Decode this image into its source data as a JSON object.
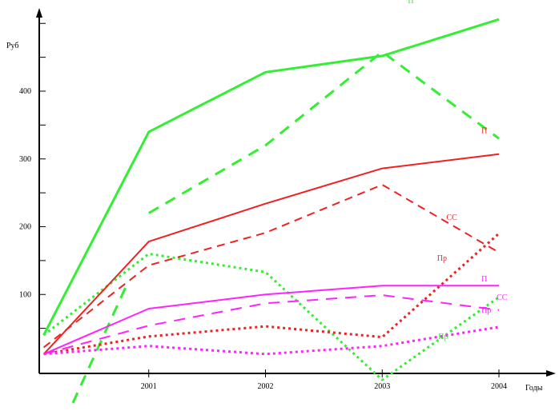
{
  "chart_data": {
    "type": "line",
    "xlabel": "Годы",
    "ylabel": "Руб",
    "x_ticks": [
      "2001",
      "2002",
      "2003",
      "2004"
    ],
    "y_ticks": [
      "100",
      "200",
      "300",
      "400"
    ],
    "series": [
      {
        "name": "",
        "color": "#33ee33",
        "style": "solid",
        "points": [
          [
            2000.1,
            40
          ],
          [
            2001,
            340
          ],
          [
            2002,
            428
          ],
          [
            2003,
            452
          ],
          [
            2004,
            506
          ]
        ]
      },
      {
        "name": "",
        "color": "#33ee33",
        "style": "dashed",
        "points": [
          [
            2001,
            220
          ],
          [
            2002,
            320
          ],
          [
            2003,
            458
          ],
          [
            2004,
            330
          ]
        ]
      },
      {
        "name": "",
        "color": "#33ee33",
        "style": "dashed",
        "points": [
          [
            2000.35,
            -60
          ],
          [
            2000.8,
            110
          ]
        ]
      },
      {
        "name": "",
        "color": "#33ee33",
        "style": "dotted",
        "points": [
          [
            2000.1,
            40
          ],
          [
            2001,
            160
          ],
          [
            2002,
            133
          ],
          [
            2003,
            -26
          ],
          [
            2004,
            96
          ]
        ]
      },
      {
        "name": "",
        "color": "#ee2222",
        "style": "solid",
        "points": [
          [
            2000.1,
            12
          ],
          [
            2001,
            178
          ],
          [
            2002,
            234
          ],
          [
            2003,
            286
          ],
          [
            2004,
            307
          ]
        ]
      },
      {
        "name": "",
        "color": "#ee2222",
        "style": "dashed",
        "points": [
          [
            2000.1,
            22
          ],
          [
            2001,
            143
          ],
          [
            2002,
            191
          ],
          [
            2003,
            262
          ],
          [
            2004,
            162
          ]
        ]
      },
      {
        "name": "",
        "color": "#ee2222",
        "style": "dotted",
        "points": [
          [
            2000.1,
            12
          ],
          [
            2001,
            38
          ],
          [
            2002,
            53
          ],
          [
            2003,
            37
          ],
          [
            2004,
            190
          ]
        ]
      },
      {
        "name": "",
        "color": "#ff22ff",
        "style": "solid",
        "points": [
          [
            2000.1,
            12
          ],
          [
            2001,
            79
          ],
          [
            2002,
            100
          ],
          [
            2003,
            113
          ],
          [
            2004,
            113
          ]
        ]
      },
      {
        "name": "",
        "color": "#ff22ff",
        "style": "dashed",
        "points": [
          [
            2000.1,
            12
          ],
          [
            2001,
            54
          ],
          [
            2002,
            87
          ],
          [
            2003,
            99
          ],
          [
            2004,
            77
          ]
        ]
      },
      {
        "name": "",
        "color": "#ff22ff",
        "style": "dotted",
        "points": [
          [
            2000.1,
            12
          ],
          [
            2001,
            24
          ],
          [
            2002,
            12
          ],
          [
            2003,
            24
          ],
          [
            2004,
            52
          ]
        ]
      }
    ],
    "annotations": [
      {
        "text": "П",
        "color": "#33ee33",
        "x": 2003.22,
        "y": 530
      },
      {
        "text": "П",
        "color": "#ee2222",
        "x": 2003.85,
        "y": 338
      },
      {
        "text": "СС",
        "color": "#ee2222",
        "x": 2003.55,
        "y": 210
      },
      {
        "text": "Пр",
        "color": "#ee2222",
        "x": 2003.47,
        "y": 150
      },
      {
        "text": "П",
        "color": "#ff22ff",
        "x": 2003.85,
        "y": 119
      },
      {
        "text": "СС",
        "color": "#ff22ff",
        "x": 2003.98,
        "y": 92
      },
      {
        "text": "Пр",
        "color": "#ff22ff",
        "x": 2003.85,
        "y": 73
      },
      {
        "text": "Пр",
        "color": "#33ee33",
        "x": 2003.48,
        "y": 34
      }
    ],
    "grid": false,
    "legend": "none"
  }
}
